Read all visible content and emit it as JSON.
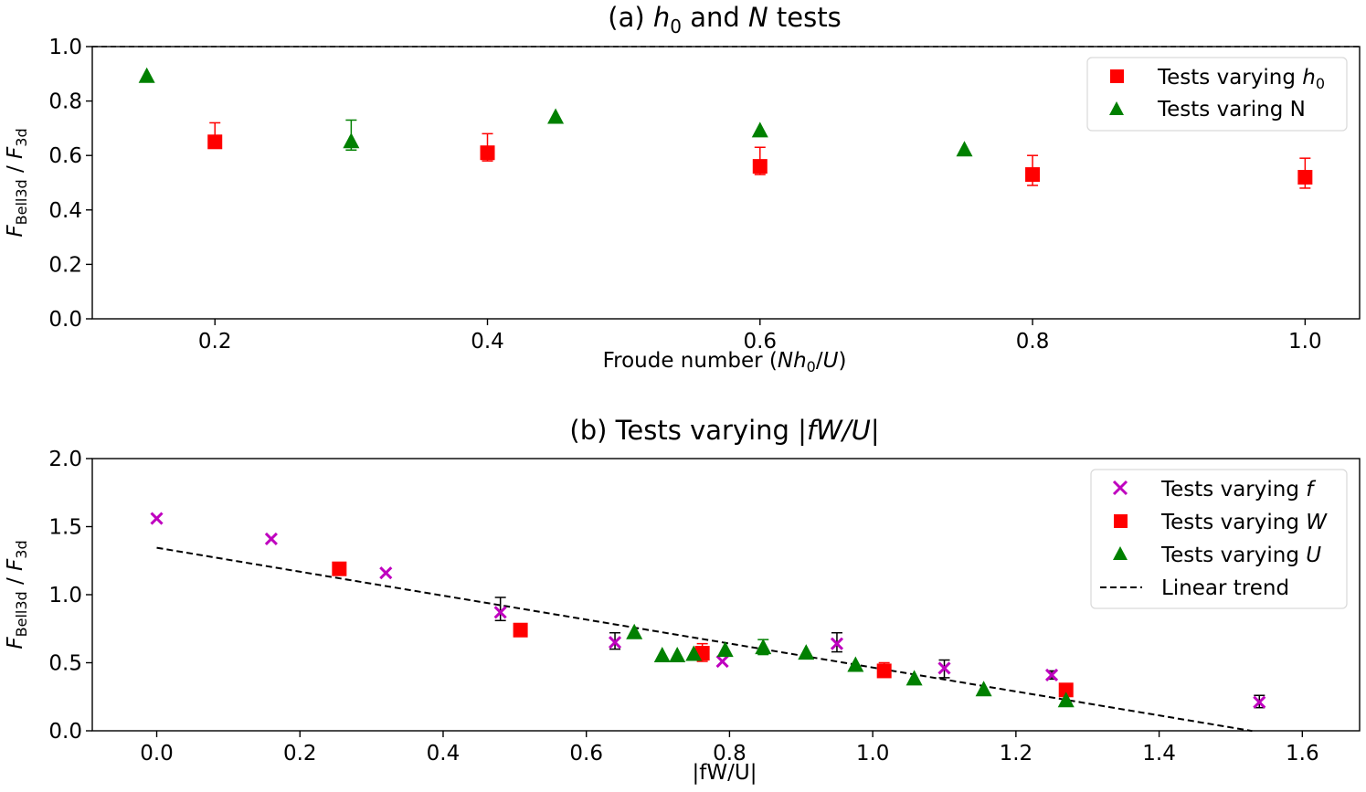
{
  "chart_data": [
    {
      "type": "scatter",
      "title": "(a) h0 and N tests",
      "title_parts": {
        "prefix": "(a) ",
        "h": "h",
        "h_sub": "0",
        "mid": " and ",
        "n": "N",
        "suffix": " tests"
      },
      "xlabel": "Froude number (Nh0/U)",
      "xlabel_parts": {
        "prefix": "Froude number (",
        "n": "N",
        "h": "h",
        "h_sub": "0",
        "slash": "/",
        "u": "U",
        "suffix": ")"
      },
      "ylabel": "F_Bell3d / F_3d",
      "ylabel_parts": {
        "f1": "F",
        "sub1": "Bell3d",
        "slash": " / ",
        "f2": "F",
        "sub2": "3d"
      },
      "xlim": [
        0.11,
        1.04
      ],
      "ylim": [
        0.0,
        1.0
      ],
      "xticks": [
        0.2,
        0.4,
        0.6,
        0.8,
        1.0
      ],
      "xtick_labels": [
        "0.2",
        "0.4",
        "0.6",
        "0.8",
        "1.0"
      ],
      "yticks": [
        0.0,
        0.2,
        0.4,
        0.6,
        0.8,
        1.0
      ],
      "ytick_labels": [
        "0.0",
        "0.2",
        "0.4",
        "0.6",
        "0.8",
        "1.0"
      ],
      "reference_line": {
        "y": 1.0,
        "style": "dashed"
      },
      "legend_position": "top-right",
      "series": [
        {
          "name": "Tests varying h0",
          "legend_parts": {
            "text": "Tests varying ",
            "h": "h",
            "h_sub": "0"
          },
          "marker": "square",
          "color": "#ff0000",
          "x": [
            0.2,
            0.4,
            0.6,
            0.8,
            1.0
          ],
          "y": [
            0.65,
            0.61,
            0.56,
            0.53,
            0.52
          ],
          "err_low": [
            0.02,
            0.03,
            0.03,
            0.04,
            0.04
          ],
          "err_high": [
            0.07,
            0.07,
            0.07,
            0.07,
            0.07
          ]
        },
        {
          "name": "Tests varing N",
          "legend_parts": {
            "text": "Tests varing N"
          },
          "marker": "triangle",
          "color": "#008000",
          "x": [
            0.15,
            0.3,
            0.45,
            0.6,
            0.75
          ],
          "y": [
            0.89,
            0.65,
            0.74,
            0.69,
            0.62
          ],
          "err_low": [
            0.0,
            0.03,
            0.0,
            0.0,
            0.0
          ],
          "err_high": [
            0.0,
            0.08,
            0.0,
            0.0,
            0.0
          ]
        }
      ]
    },
    {
      "type": "scatter",
      "title": "(b) Tests varying |fW/U|",
      "title_parts": {
        "prefix": "(b) Tests varying |",
        "italic": "fW/U",
        "suffix": "|"
      },
      "xlabel": "|fW/U|",
      "ylabel": "F_Bell3d / F_3d",
      "ylabel_parts": {
        "f1": "F",
        "sub1": "Bell3d",
        "slash": " / ",
        "f2": "F",
        "sub2": "3d"
      },
      "xlim": [
        -0.09,
        1.68
      ],
      "ylim": [
        0.0,
        2.0
      ],
      "xticks": [
        0.0,
        0.2,
        0.4,
        0.6,
        0.8,
        1.0,
        1.2,
        1.4,
        1.6
      ],
      "xtick_labels": [
        "0.0",
        "0.2",
        "0.4",
        "0.6",
        "0.8",
        "1.0",
        "1.2",
        "1.4",
        "1.6"
      ],
      "yticks": [
        0.0,
        0.5,
        1.0,
        1.5,
        2.0
      ],
      "ytick_labels": [
        "0.0",
        "0.5",
        "1.0",
        "1.5",
        "2.0"
      ],
      "legend_position": "top-right",
      "trend": {
        "name": "Linear trend",
        "slope": -0.88,
        "intercept": 1.345,
        "x_start": 0.0,
        "x_end": 1.53,
        "style": "dashed",
        "color": "#000000"
      },
      "series": [
        {
          "name": "Tests varying f",
          "legend_parts": {
            "text": "Tests varying ",
            "italic": "f"
          },
          "marker": "x",
          "color": "#bf00bf",
          "x": [
            0.0,
            0.16,
            0.32,
            0.48,
            0.64,
            0.79,
            0.95,
            1.1,
            1.25,
            1.54
          ],
          "y": [
            1.56,
            1.41,
            1.16,
            0.87,
            0.65,
            0.51,
            0.64,
            0.46,
            0.41,
            0.21
          ],
          "err_low": [
            0.0,
            0.0,
            0.0,
            0.06,
            0.05,
            0.0,
            0.06,
            0.07,
            0.03,
            0.04
          ],
          "err_high": [
            0.0,
            0.0,
            0.0,
            0.11,
            0.07,
            0.0,
            0.08,
            0.06,
            0.03,
            0.05
          ]
        },
        {
          "name": "Tests varying W",
          "legend_parts": {
            "text": "Tests varying ",
            "italic": "W"
          },
          "marker": "square",
          "color": "#ff0000",
          "x": [
            0.255,
            0.508,
            0.762,
            1.016,
            1.27
          ],
          "y": [
            1.19,
            0.74,
            0.57,
            0.44,
            0.3
          ],
          "err_low": [
            0.0,
            0.0,
            0.06,
            0.04,
            0.0
          ],
          "err_high": [
            0.0,
            0.0,
            0.07,
            0.06,
            0.0
          ]
        },
        {
          "name": "Tests varying U",
          "legend_parts": {
            "text": "Tests varying ",
            "italic": "U"
          },
          "marker": "triangle",
          "color": "#008000",
          "x": [
            0.667,
            0.706,
            0.727,
            0.75,
            0.794,
            0.847,
            0.907,
            0.976,
            1.058,
            1.155,
            1.27
          ],
          "y": [
            0.72,
            0.55,
            0.55,
            0.56,
            0.59,
            0.61,
            0.57,
            0.48,
            0.38,
            0.3,
            0.22
          ],
          "err_low": [
            0.0,
            0.0,
            0.0,
            0.0,
            0.03,
            0.05,
            0.0,
            0.0,
            0.0,
            0.0,
            0.0
          ],
          "err_high": [
            0.0,
            0.0,
            0.0,
            0.0,
            0.0,
            0.06,
            0.0,
            0.0,
            0.0,
            0.0,
            0.0
          ]
        }
      ]
    }
  ]
}
